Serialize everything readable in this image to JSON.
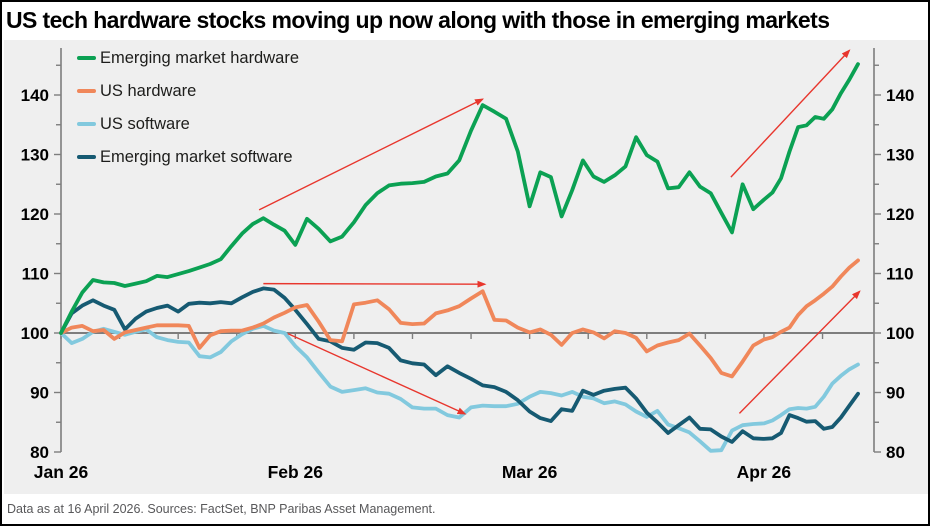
{
  "title": "US tech hardware stocks moving up now along with those in emerging markets",
  "footer": "Data as at 16 April 2026. Sources: FactSet, BNP Paribas Asset Management.",
  "colors": {
    "background_plot": "#efefef",
    "axis": "#7d7d7d",
    "arrow": "#e8362d",
    "label_text": "#000000",
    "footer_text": "#58585a"
  },
  "chart_data": {
    "type": "line",
    "title": "US tech hardware stocks moving up now along with those in emerging markets",
    "x_axis": {
      "unit": "business days, 1 Jan 2026 - 16 Apr 2026",
      "month_labels": [
        "Jan 26",
        "Feb 26",
        "Mar 26",
        "Apr 26"
      ],
      "month_start_indices": [
        0,
        22,
        42,
        64
      ],
      "points_per_series": 76,
      "grid": false
    },
    "y_axis": {
      "min": 80,
      "max": 148,
      "baseline": 100,
      "major_ticks": [
        80,
        90,
        100,
        110,
        120,
        130,
        140
      ],
      "minor_tick_step": 5,
      "both_sides": true
    },
    "legend_position": "top-left-inside",
    "series": [
      {
        "name": "Emerging market hardware",
        "color": "#0ba153",
        "values": [
          100,
          103.6,
          106.8,
          108.9,
          108.5,
          108.4,
          107.9,
          108.3,
          108.7,
          109.6,
          109.4,
          109.9,
          110.4,
          111,
          111.6,
          112.4,
          114.6,
          116.7,
          118.3,
          119.3,
          118.2,
          117.2,
          114.8,
          119.2,
          117.5,
          115.4,
          116.2,
          118.6,
          121.5,
          123.5,
          124.8,
          125.1,
          125.2,
          125.4,
          126.3,
          126.8,
          129,
          134,
          138.3,
          137.2,
          136,
          130.5,
          121.3,
          127,
          126.2,
          119.6,
          124,
          129,
          126.3,
          125.4,
          126.5,
          128,
          132.9,
          129.9,
          128.8,
          124.3,
          124.5,
          127,
          124.6,
          123.5,
          120.2,
          116.9,
          125,
          120.8,
          122.4,
          123.6,
          126,
          130.5,
          134.6,
          134.9,
          136.3,
          136,
          137.6,
          140.3,
          142.6,
          145.2
        ]
      },
      {
        "name": "US hardware",
        "color": "#f0875a",
        "values": [
          100,
          100.9,
          101.2,
          100.3,
          100.5,
          99,
          100.1,
          100.5,
          100.9,
          101.3,
          101.3,
          101.3,
          101.2,
          97.5,
          99.6,
          100.3,
          100.4,
          100.4,
          100.9,
          101.6,
          102.6,
          103.4,
          104.3,
          104.7,
          101.9,
          98.8,
          98.6,
          104.8,
          105.1,
          105.5,
          104,
          101.7,
          101.5,
          101.6,
          103.3,
          103.8,
          104.5,
          105.8,
          107,
          102.2,
          102.1,
          100.9,
          100.1,
          100.6,
          99.7,
          98,
          100,
          100.6,
          100.1,
          99.1,
          100.3,
          100,
          99.2,
          96.9,
          97.9,
          98.4,
          98.8,
          99.9,
          97.9,
          95.8,
          93.3,
          92.7,
          95.2,
          97.9,
          98.9,
          99.3,
          100.2,
          100.9,
          103,
          104.5,
          105.5,
          106.6,
          107.8,
          109.5,
          111,
          112.2
        ]
      },
      {
        "name": "US software",
        "color": "#82c9de",
        "values": [
          100,
          98.3,
          99,
          100.2,
          100.7,
          100.2,
          99.7,
          100.2,
          100.6,
          99.3,
          98.8,
          98.5,
          98.4,
          96.1,
          95.9,
          96.8,
          98.6,
          99.8,
          100.7,
          101.2,
          100.4,
          100,
          97.8,
          95.9,
          93.4,
          91,
          90.1,
          90.4,
          90.7,
          90,
          89.8,
          88.9,
          87.5,
          87.3,
          87.3,
          86.2,
          85.8,
          87.5,
          87.8,
          87.7,
          87.7,
          88.1,
          89.3,
          90.1,
          89.9,
          89.5,
          90.1,
          89.3,
          89,
          88.2,
          88.5,
          88,
          86.8,
          85.9,
          86.9,
          84.6,
          84,
          83.3,
          81.8,
          80.2,
          80.3,
          83.6,
          84.5,
          84.7,
          84.8,
          85.3,
          86.2,
          87.2,
          87.4,
          87.3,
          87.6,
          89.3,
          91.5,
          92.8,
          93.9,
          94.7
        ]
      },
      {
        "name": "Emerging market software",
        "color": "#165a72",
        "values": [
          100,
          103.3,
          104.6,
          105.5,
          104.6,
          103.9,
          100.6,
          102.4,
          103.6,
          104.2,
          104.6,
          103.6,
          104.9,
          105.1,
          105,
          105.2,
          105,
          106,
          106.9,
          107.5,
          107.3,
          105.9,
          103.9,
          101.5,
          99,
          98.6,
          97.5,
          97.2,
          98.4,
          98.3,
          97.5,
          95.4,
          94.9,
          94.7,
          92.9,
          94.4,
          93.3,
          92.3,
          91.2,
          90.9,
          90.1,
          88.7,
          86.8,
          85.7,
          85.2,
          87.2,
          86.9,
          90.3,
          89.6,
          90.3,
          90.6,
          90.8,
          89,
          86.6,
          85,
          83.2,
          84.5,
          85.8,
          83.9,
          83.8,
          82.6,
          81.7,
          83.5,
          82.3,
          82.2,
          82.3,
          83.2,
          86.2,
          85.7,
          85.1,
          85.2,
          83.9,
          84.2,
          85.8,
          87.8,
          89.8
        ]
      }
    ],
    "annotations": [
      {
        "type": "arrow",
        "from_idx": 18.6,
        "from_val": 120.7,
        "to_idx": 38.0,
        "to_val": 139.3
      },
      {
        "type": "arrow",
        "from_idx": 19.0,
        "from_val": 108.3,
        "to_idx": 38.2,
        "to_val": 108.2
      },
      {
        "type": "arrow",
        "from_idx": 21.3,
        "from_val": 99.9,
        "to_idx": 36.5,
        "to_val": 86.4
      },
      {
        "type": "arrow",
        "from_idx": 60.9,
        "from_val": 126.2,
        "to_idx": 74.0,
        "to_val": 147.5
      },
      {
        "type": "arrow",
        "from_idx": 61.7,
        "from_val": 86.5,
        "to_idx": 75.2,
        "to_val": 107.0
      }
    ]
  }
}
